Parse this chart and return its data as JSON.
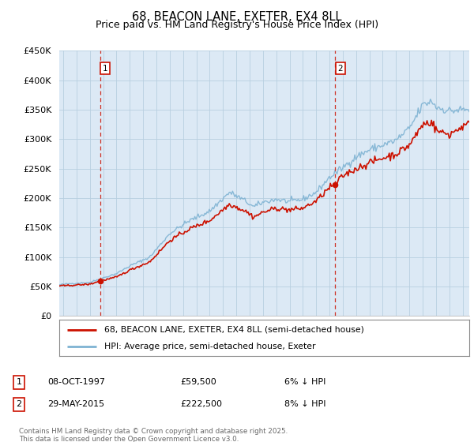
{
  "title": "68, BEACON LANE, EXETER, EX4 8LL",
  "subtitle": "Price paid vs. HM Land Registry's House Price Index (HPI)",
  "legend_line1": "68, BEACON LANE, EXETER, EX4 8LL (semi-detached house)",
  "legend_line2": "HPI: Average price, semi-detached house, Exeter",
  "annotation1_date": "08-OCT-1997",
  "annotation1_price": "£59,500",
  "annotation1_note": "6% ↓ HPI",
  "annotation2_date": "29-MAY-2015",
  "annotation2_price": "£222,500",
  "annotation2_note": "8% ↓ HPI",
  "footer": "Contains HM Land Registry data © Crown copyright and database right 2025.\nThis data is licensed under the Open Government Licence v3.0.",
  "hpi_color": "#7fb3d3",
  "price_color": "#cc1100",
  "vline_color": "#cc1100",
  "chart_bg_color": "#dce9f5",
  "background_color": "#ffffff",
  "grid_color": "#b8cfe0",
  "ylim": [
    0,
    450000
  ],
  "yticks": [
    0,
    50000,
    100000,
    150000,
    200000,
    250000,
    300000,
    350000,
    400000,
    450000
  ],
  "xlim_start": 1994.7,
  "xlim_end": 2025.5,
  "purchase1_x": 1997.77,
  "purchase1_y": 59500,
  "purchase2_x": 2015.41,
  "purchase2_y": 222500,
  "hpi_targets": {
    "1994.7": 53000,
    "1995.5": 55000,
    "1997.0": 57000,
    "1997.77": 63000,
    "1999.0": 72000,
    "2000.0": 85000,
    "2001.5": 100000,
    "2003.0": 140000,
    "2004.5": 162000,
    "2006.0": 178000,
    "2007.5": 210000,
    "2008.7": 195000,
    "2009.3": 185000,
    "2010.0": 193000,
    "2011.0": 198000,
    "2012.0": 194000,
    "2013.0": 198000,
    "2014.0": 210000,
    "2015.0": 235000,
    "2015.41": 242000,
    "2016.0": 252000,
    "2017.0": 270000,
    "2018.0": 282000,
    "2019.0": 290000,
    "2020.0": 298000,
    "2021.0": 318000,
    "2022.0": 358000,
    "2022.7": 365000,
    "2023.0": 355000,
    "2024.0": 348000,
    "2025.0": 350000,
    "2025.5": 350000
  },
  "price_targets": {
    "1994.7": 51000,
    "1995.5": 52000,
    "1997.0": 54000,
    "1997.77": 59500,
    "1999.0": 66000,
    "2000.0": 78000,
    "2001.5": 92000,
    "2003.0": 128000,
    "2004.5": 148000,
    "2006.0": 162000,
    "2007.5": 190000,
    "2008.7": 178000,
    "2009.3": 168000,
    "2010.0": 176000,
    "2011.0": 183000,
    "2012.0": 180000,
    "2013.0": 183000,
    "2014.0": 195000,
    "2015.0": 218000,
    "2015.41": 222500,
    "2016.0": 238000,
    "2017.0": 250000,
    "2018.0": 260000,
    "2019.0": 268000,
    "2020.0": 275000,
    "2021.0": 290000,
    "2022.0": 325000,
    "2022.7": 330000,
    "2023.0": 315000,
    "2024.0": 308000,
    "2025.0": 322000,
    "2025.5": 325000
  }
}
